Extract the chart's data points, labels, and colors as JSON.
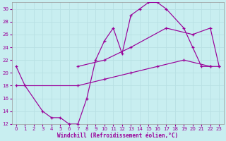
{
  "xlabel": "Windchill (Refroidissement éolien,°C)",
  "bg_color": "#c8eef0",
  "line_color": "#990099",
  "grid_color": "#b8e0e4",
  "xlim": [
    -0.5,
    23.5
  ],
  "ylim": [
    12,
    31
  ],
  "xticks": [
    0,
    1,
    2,
    3,
    4,
    5,
    6,
    7,
    8,
    9,
    10,
    11,
    12,
    13,
    14,
    15,
    16,
    17,
    18,
    19,
    20,
    21,
    22,
    23
  ],
  "yticks": [
    12,
    14,
    16,
    18,
    20,
    22,
    24,
    26,
    28,
    30
  ],
  "line1_x": [
    0,
    1,
    3,
    4,
    5,
    6,
    7,
    8,
    9,
    10,
    11,
    12,
    13,
    14,
    15,
    16,
    17,
    19,
    20,
    21,
    22
  ],
  "line1_y": [
    21,
    18,
    14,
    13,
    13,
    12,
    12,
    16,
    22,
    25,
    27,
    23,
    29,
    30,
    31,
    31,
    30,
    27,
    24,
    21,
    21
  ],
  "line2_x": [
    0,
    7,
    10,
    13,
    16,
    19,
    22,
    23
  ],
  "line2_y": [
    18,
    18,
    19,
    20,
    21,
    22,
    21,
    21
  ],
  "line3_x": [
    7,
    10,
    13,
    17,
    20,
    22,
    23
  ],
  "line3_y": [
    21,
    22,
    24,
    27,
    26,
    27,
    21
  ]
}
